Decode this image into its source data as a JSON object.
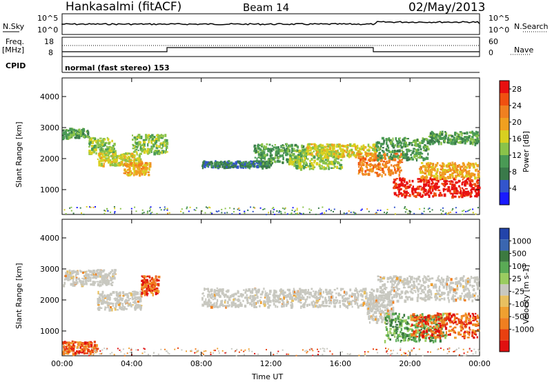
{
  "header": {
    "station": "Hankasalmi (fitACF)",
    "beam": "Beam 14",
    "date": "02/May/2013"
  },
  "top_panels": {
    "nsky_label": "N.Sky",
    "nsky_ticks": [
      "10^5",
      "10^0"
    ],
    "nsearch_label": "N.Search",
    "nsearch_ticks": [
      "10^5",
      "10^0"
    ],
    "freq_label": [
      "Freq.",
      "[MHz]"
    ],
    "freq_ticks": [
      "18",
      "8"
    ],
    "nave_label": "Nave",
    "nave_ticks": [
      "60",
      "0"
    ],
    "cpid_label": "CPID",
    "cpid_text": "normal (fast stereo) 153"
  },
  "colors": {
    "power": [
      "#1a1aff",
      "#3355cc",
      "#3a7a4a",
      "#4a9a55",
      "#8ac34a",
      "#d8d020",
      "#f0a020",
      "#f08020",
      "#f05010",
      "#e81010"
    ],
    "velocity_pos": [
      "#2244aa",
      "#3a66b0",
      "#3c7a40",
      "#5aaa55",
      "#9acc60"
    ],
    "velocity_neutral": "#c8c8c0",
    "velocity_neg": [
      "#e8c060",
      "#f0a030",
      "#f07f20",
      "#e84010",
      "#e01010"
    ]
  },
  "chart_data": [
    {
      "type": "heatmap",
      "name": "power",
      "ylabel": "Slant Range [km]",
      "cbar_label": "Power [dB]",
      "yticks": [
        1000,
        2000,
        3000,
        4000
      ],
      "cbar_ticks": [
        4,
        8,
        12,
        16,
        20,
        24,
        28
      ],
      "ylim": [
        200,
        4600
      ],
      "xticks": [
        "00:00",
        "04:00",
        "08:00",
        "12:00",
        "16:00",
        "20:00",
        "00:00"
      ],
      "xlim_hours": [
        0,
        24
      ],
      "echo_regions": [
        {
          "t": [
            0.0,
            1.5
          ],
          "r": [
            2700,
            3000
          ],
          "level": 3
        },
        {
          "t": [
            1.5,
            3.0
          ],
          "r": [
            2200,
            2700
          ],
          "level": 4
        },
        {
          "t": [
            2.0,
            4.5
          ],
          "r": [
            1800,
            2200
          ],
          "level": 5
        },
        {
          "t": [
            3.5,
            5.0
          ],
          "r": [
            1500,
            1900
          ],
          "level": 6
        },
        {
          "t": [
            4.0,
            6.0
          ],
          "r": [
            2200,
            2800
          ],
          "level": 4
        },
        {
          "t": [
            8.0,
            12.0
          ],
          "r": [
            1750,
            1950
          ],
          "level": 2
        },
        {
          "t": [
            11.0,
            14.0
          ],
          "r": [
            1900,
            2500
          ],
          "level": 3
        },
        {
          "t": [
            13.0,
            16.0
          ],
          "r": [
            1700,
            2300
          ],
          "level": 4
        },
        {
          "t": [
            14.0,
            18.0
          ],
          "r": [
            2100,
            2500
          ],
          "level": 5
        },
        {
          "t": [
            17.0,
            19.5
          ],
          "r": [
            1500,
            2200
          ],
          "level": 7
        },
        {
          "t": [
            18.0,
            21.0
          ],
          "r": [
            2000,
            2700
          ],
          "level": 3
        },
        {
          "t": [
            19.0,
            24.0
          ],
          "r": [
            800,
            1400
          ],
          "level": 9
        },
        {
          "t": [
            20.5,
            24.0
          ],
          "r": [
            1400,
            1900
          ],
          "level": 6
        },
        {
          "t": [
            21.0,
            24.0
          ],
          "r": [
            2500,
            2900
          ],
          "level": 3
        }
      ]
    },
    {
      "type": "heatmap",
      "name": "velocity",
      "ylabel": "Slant Range [km]",
      "cbar_label": "Velocity [m s-1]",
      "yticks": [
        1000,
        2000,
        3000,
        4000
      ],
      "cbar_ticks": [
        1000,
        500,
        100,
        25,
        -25,
        -100,
        -500,
        -1000
      ],
      "ylim": [
        200,
        4600
      ],
      "xticks": [
        "00:00",
        "04:00",
        "08:00",
        "12:00",
        "16:00",
        "20:00",
        "00:00"
      ],
      "xlabel": "Time UT",
      "echo_regions": [
        {
          "t": [
            0.0,
            3.0
          ],
          "r": [
            2500,
            3000
          ],
          "class": "neutral"
        },
        {
          "t": [
            2.0,
            4.5
          ],
          "r": [
            1700,
            2300
          ],
          "class": "neutral"
        },
        {
          "t": [
            4.5,
            5.5
          ],
          "r": [
            2200,
            2800
          ],
          "class": "neg"
        },
        {
          "t": [
            0.0,
            2.0
          ],
          "r": [
            300,
            700
          ],
          "class": "neg"
        },
        {
          "t": [
            8.0,
            18.0
          ],
          "r": [
            1800,
            2400
          ],
          "class": "neutral"
        },
        {
          "t": [
            17.5,
            19.0
          ],
          "r": [
            1300,
            2200
          ],
          "class": "neutral"
        },
        {
          "t": [
            18.0,
            24.0
          ],
          "r": [
            2000,
            2800
          ],
          "class": "neutral"
        },
        {
          "t": [
            18.5,
            22.0
          ],
          "r": [
            700,
            1600
          ],
          "class": "pos"
        },
        {
          "t": [
            20.0,
            24.0
          ],
          "r": [
            800,
            1600
          ],
          "class": "neg"
        }
      ]
    }
  ]
}
